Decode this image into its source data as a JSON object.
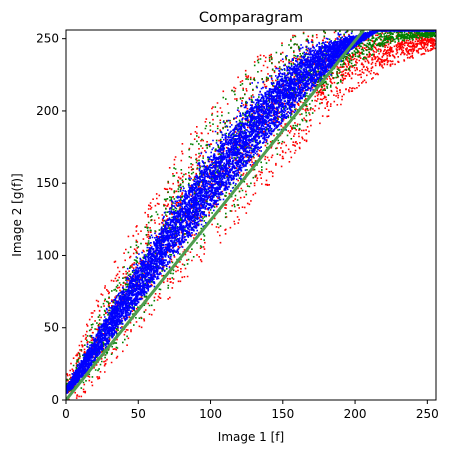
{
  "chart_data": {
    "type": "scatter",
    "title": "Comparagram",
    "xlabel": "Image 1 [f]",
    "ylabel": "Image 2 [g(f)]",
    "xlim": [
      0,
      256
    ],
    "ylim": [
      0,
      256
    ],
    "grid": false,
    "xticks": [
      0,
      50,
      100,
      150,
      200,
      250
    ],
    "yticks": [
      0,
      50,
      100,
      150,
      200,
      250
    ],
    "series": [
      {
        "name": "red",
        "color": "#ff0000",
        "upper": [
          [
            0,
            18
          ],
          [
            10,
            45
          ],
          [
            25,
            80
          ],
          [
            50,
            130
          ],
          [
            75,
            172
          ],
          [
            100,
            205
          ],
          [
            125,
            233
          ],
          [
            150,
            252
          ],
          [
            170,
            256
          ]
        ],
        "lower": [
          [
            0,
            0
          ],
          [
            10,
            2
          ],
          [
            25,
            18
          ],
          [
            50,
            45
          ],
          [
            75,
            75
          ],
          [
            100,
            102
          ],
          [
            125,
            130
          ],
          [
            150,
            160
          ],
          [
            175,
            190
          ],
          [
            200,
            215
          ],
          [
            225,
            232
          ],
          [
            256,
            243
          ]
        ]
      },
      {
        "name": "green",
        "color": "#008000",
        "upper": [
          [
            0,
            14
          ],
          [
            10,
            38
          ],
          [
            25,
            70
          ],
          [
            50,
            118
          ],
          [
            75,
            163
          ],
          [
            100,
            200
          ],
          [
            125,
            230
          ],
          [
            150,
            250
          ],
          [
            170,
            256
          ]
        ],
        "lower": [
          [
            0,
            2
          ],
          [
            10,
            8
          ],
          [
            25,
            24
          ],
          [
            50,
            52
          ],
          [
            75,
            83
          ],
          [
            100,
            113
          ],
          [
            125,
            143
          ],
          [
            150,
            173
          ],
          [
            175,
            204
          ],
          [
            200,
            232
          ],
          [
            225,
            248
          ],
          [
            256,
            252
          ]
        ]
      },
      {
        "name": "blue",
        "color": "#0000ff",
        "upper": [
          [
            0,
            12
          ],
          [
            10,
            32
          ],
          [
            25,
            62
          ],
          [
            50,
            106
          ],
          [
            75,
            148
          ],
          [
            100,
            186
          ],
          [
            125,
            218
          ],
          [
            150,
            242
          ],
          [
            165,
            254
          ],
          [
            175,
            256
          ]
        ],
        "lower": [
          [
            0,
            4
          ],
          [
            10,
            12
          ],
          [
            25,
            30
          ],
          [
            50,
            60
          ],
          [
            75,
            92
          ],
          [
            100,
            122
          ],
          [
            125,
            153
          ],
          [
            150,
            184
          ],
          [
            175,
            216
          ],
          [
            200,
            244
          ],
          [
            215,
            256
          ]
        ]
      }
    ],
    "fit_line": {
      "name": "fit",
      "color": "#4f9d4f",
      "points": [
        [
          0,
          0
        ],
        [
          206,
          256
        ]
      ]
    }
  }
}
